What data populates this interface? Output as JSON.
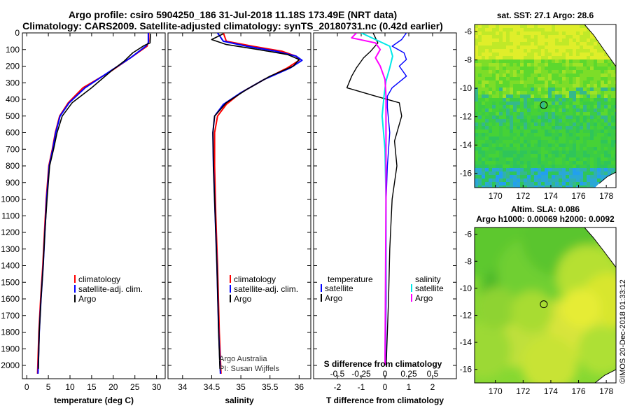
{
  "header": {
    "title_line1": "Argo profile: csiro 5904250_186 31-Jul-2018 11.18S 173.49E (NRT data)",
    "title_line2": "Climatology: CARS2009. Satellite-adjusted climatology: synTS_20180731.nc (0.42d earlier)"
  },
  "colors": {
    "climatology": "#ff0000",
    "satellite": "#0000ff",
    "argo": "#000000",
    "salinity_satellite": "#00e8e8",
    "salinity_argo": "#ff00ff"
  },
  "chart_data": [
    {
      "type": "line",
      "name": "temperature",
      "xlabel": "temperature (deg C)",
      "ylabel": "",
      "xlim": [
        -1,
        32
      ],
      "ylim": [
        2080,
        0
      ],
      "xticks": [
        0,
        5,
        10,
        15,
        20,
        25,
        30
      ],
      "yticks": [
        0,
        100,
        200,
        300,
        400,
        500,
        600,
        700,
        800,
        900,
        1000,
        1100,
        1200,
        1300,
        1400,
        1500,
        1600,
        1700,
        1800,
        1900,
        2000
      ],
      "legend": [
        "climatology",
        "satellite-adj. clim.",
        "Argo"
      ],
      "series": [
        {
          "name": "climatology",
          "x": [
            28.2,
            28.2,
            27.8,
            24,
            19.5,
            13,
            9.6,
            7.6,
            6.6,
            5.9,
            5.1,
            4.5,
            4.1,
            3.7,
            3.2,
            2.8,
            2.5
          ],
          "y": [
            0,
            50,
            80,
            150,
            230,
            330,
            420,
            500,
            600,
            700,
            800,
            1000,
            1200,
            1400,
            1600,
            1800,
            2050
          ]
        },
        {
          "name": "satellite-adj. clim.",
          "x": [
            28.1,
            28.1,
            27.5,
            24,
            19.3,
            13.5,
            9.8,
            7.7,
            6.7,
            6,
            5.2,
            4.6,
            4.2,
            3.8,
            3.3,
            2.9,
            2.6
          ],
          "y": [
            0,
            60,
            80,
            150,
            230,
            330,
            420,
            500,
            600,
            700,
            800,
            1000,
            1200,
            1400,
            1600,
            1800,
            2050
          ]
        },
        {
          "name": "Argo",
          "x": [
            28.6,
            28.5,
            27.2,
            24.5,
            22.5,
            19.5,
            15,
            10.5,
            8.2,
            7,
            6.2,
            5.3,
            4.7,
            4.2,
            3.8,
            3.3,
            2.9,
            2.7
          ],
          "y": [
            5,
            60,
            75,
            120,
            170,
            230,
            330,
            420,
            500,
            600,
            700,
            800,
            1000,
            1200,
            1400,
            1600,
            1800,
            2020
          ]
        }
      ]
    },
    {
      "type": "line",
      "name": "salinity",
      "xlabel": "salinity",
      "xlim": [
        33.75,
        36.2
      ],
      "ylim": [
        2080,
        0
      ],
      "xticks": [
        34,
        34.5,
        35,
        35.5,
        36
      ],
      "legend": [
        "climatology",
        "satellite-adj. clim.",
        "Argo"
      ],
      "annotations": [
        "Argo Australia",
        "PI: Susan Wijffels"
      ],
      "series": [
        {
          "name": "climatology",
          "x": [
            34.7,
            34.75,
            35.2,
            35.7,
            35.95,
            36.0,
            35.8,
            35.4,
            35,
            34.75,
            34.6,
            34.55,
            34.55,
            34.57,
            34.6,
            34.63,
            34.66
          ],
          "y": [
            0,
            50,
            80,
            110,
            140,
            165,
            210,
            280,
            360,
            430,
            500,
            600,
            800,
            1100,
            1400,
            1800,
            2050
          ]
        },
        {
          "name": "satellite-adj. clim.",
          "x": [
            34.6,
            34.7,
            35.1,
            35.6,
            35.95,
            36.05,
            35.85,
            35.4,
            35,
            34.7,
            34.55,
            34.52,
            34.53,
            34.56,
            34.59,
            34.62,
            34.65
          ],
          "y": [
            0,
            50,
            80,
            110,
            140,
            165,
            210,
            280,
            360,
            430,
            500,
            600,
            800,
            1100,
            1400,
            1800,
            2050
          ]
        },
        {
          "name": "Argo",
          "x": [
            34.7,
            34.5,
            34.75,
            35.3,
            35.8,
            36.0,
            35.9,
            35.5,
            35.1,
            34.75,
            34.55,
            34.52,
            34.53,
            34.56,
            34.59,
            34.62,
            34.64
          ],
          "y": [
            5,
            40,
            70,
            100,
            130,
            160,
            200,
            260,
            340,
            420,
            500,
            600,
            800,
            1100,
            1400,
            1800,
            2020
          ]
        }
      ]
    },
    {
      "type": "line",
      "name": "difference from climatology",
      "xlabel": "T difference from climatology",
      "x2label": "S difference from climatology",
      "xlim": [
        -3,
        3
      ],
      "x2lim": [
        -0.75,
        0.75
      ],
      "ylim": [
        2080,
        0
      ],
      "xticks": [
        -2,
        -1,
        0,
        1,
        2
      ],
      "x2ticks": [
        -0.5,
        -0.25,
        0,
        0.25,
        0.5
      ],
      "x2ticklabels": [
        "-0.5",
        "-0.25",
        "0",
        "0.25",
        "0.5"
      ],
      "legend_temperature_title": "temperature",
      "legend_salinity_title": "salinity",
      "legend": [
        "satellite",
        "Argo",
        "satellite",
        "Argo"
      ],
      "series": [
        {
          "name": "temperature satellite",
          "x": [
            0.9,
            0.7,
            0.3,
            0.8,
            0.9,
            0.6,
            0.9,
            0.3,
            0.1,
            0.1,
            0.2,
            0.1,
            0.05,
            0.05,
            0.05,
            0.02
          ],
          "y": [
            0,
            40,
            80,
            120,
            160,
            200,
            260,
            330,
            380,
            450,
            600,
            800,
            1000,
            1300,
            1600,
            2000
          ]
        },
        {
          "name": "temperature Argo",
          "x": [
            -0.5,
            -0.3,
            -0.6,
            -0.9,
            -1.2,
            -1.4,
            -1.6,
            -0.4,
            0.6,
            0.7,
            0.4,
            0.5,
            0.3,
            0.2,
            0.15,
            0.05
          ],
          "y": [
            0,
            60,
            110,
            150,
            210,
            260,
            330,
            380,
            420,
            500,
            650,
            800,
            1000,
            1300,
            1600,
            2000
          ]
        },
        {
          "name": "salinity satellite",
          "x": [
            -0.25,
            -0.1,
            0.05,
            0.08,
            0.05,
            0.01,
            -0.01,
            -0.03,
            0,
            0.01,
            0.01,
            0
          ],
          "y": [
            0,
            40,
            80,
            140,
            210,
            290,
            380,
            500,
            700,
            1000,
            1400,
            2000
          ]
        },
        {
          "name": "salinity Argo",
          "x": [
            -0.3,
            -0.35,
            -0.1,
            -0.05,
            -0.1,
            -0.05,
            0,
            0.01,
            0.01,
            0.01,
            0
          ],
          "y": [
            0,
            30,
            60,
            100,
            150,
            200,
            280,
            380,
            600,
            1000,
            2000
          ]
        }
      ]
    },
    {
      "type": "heatmap",
      "name": "sat. SST map",
      "title": "sat. SST: 27.1  Argo: 28.6",
      "xlim": [
        168.5,
        178.7
      ],
      "ylim": [
        -17,
        -5.5
      ],
      "xticks": [
        170,
        172,
        174,
        176,
        178
      ],
      "yticks": [
        -6,
        -8,
        -10,
        -12,
        -14,
        -16
      ],
      "marker": {
        "lon": 173.49,
        "lat": -11.18
      }
    },
    {
      "type": "heatmap",
      "name": "altimeter SLA map",
      "title": "Altim. SLA: 0.086",
      "subtitle": "Argo h1000: 0.00069 h2000: 0.0092",
      "xlim": [
        168.5,
        178.7
      ],
      "ylim": [
        -17,
        -5.5
      ],
      "xticks": [
        170,
        172,
        174,
        176,
        178
      ],
      "yticks": [
        -6,
        -8,
        -10,
        -12,
        -14,
        -16
      ],
      "marker": {
        "lon": 173.49,
        "lat": -11.18
      }
    }
  ],
  "footer": {
    "credit": "©IMOS 20-Dec-2018 01:33:12"
  }
}
